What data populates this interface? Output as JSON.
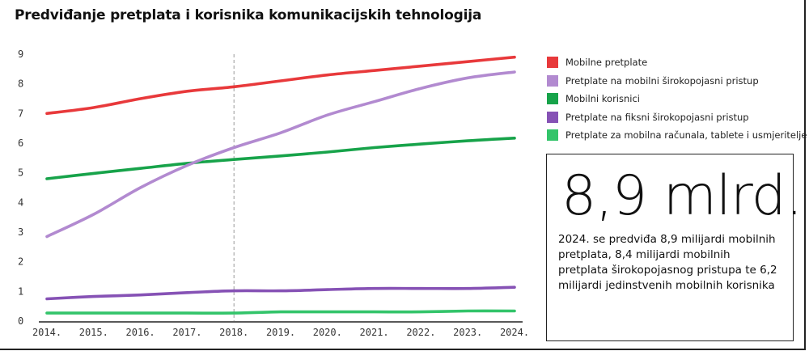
{
  "title": "Predviđanje pretplata i korisnika komunikacijskih tehnologija",
  "callout": {
    "big_number": "8,9 mlrd.",
    "text": "2024. se predviđa 8,9 milijardi mobilnih pretplata, 8,4 milijardi mobilnih pretplata širokopojasnog pristupa te 6,2 milijardi jedinstvenih mobilnih korisnika"
  },
  "chart_data": {
    "type": "line",
    "title": "Predviđanje pretplata i korisnika komunikacijskih tehnologija",
    "xlabel": "",
    "ylabel": "",
    "categories": [
      "2014.",
      "2015.",
      "2016.",
      "2017.",
      "2018.",
      "2019.",
      "2020.",
      "2021.",
      "2022.",
      "2023.",
      "2024."
    ],
    "ylim": [
      0,
      9
    ],
    "yticks": [
      "0",
      "1",
      "2",
      "3",
      "4",
      "5",
      "6",
      "7",
      "8",
      "9"
    ],
    "grid": false,
    "reference_line_at": "2018.",
    "legend_position": "right",
    "series": [
      {
        "name": "Mobilne pretplate",
        "color": "#e8393b",
        "values": [
          7.0,
          7.2,
          7.5,
          7.75,
          7.9,
          8.1,
          8.3,
          8.45,
          8.6,
          8.75,
          8.9
        ]
      },
      {
        "name": "Pretplate na mobilni širokopojasni pristup",
        "color": "#b28ad0",
        "values": [
          2.85,
          3.6,
          4.5,
          5.25,
          5.85,
          6.35,
          6.95,
          7.4,
          7.85,
          8.2,
          8.4
        ]
      },
      {
        "name": "Mobilni korisnici",
        "color": "#17a34a",
        "values": [
          4.8,
          4.98,
          5.15,
          5.32,
          5.45,
          5.57,
          5.7,
          5.85,
          5.97,
          6.08,
          6.17
        ]
      },
      {
        "name": "Pretplate na fiksni širokopojasni pristup",
        "color": "#8652b5",
        "values": [
          0.75,
          0.83,
          0.88,
          0.96,
          1.02,
          1.02,
          1.06,
          1.1,
          1.1,
          1.1,
          1.14
        ]
      },
      {
        "name": "Pretplate za mobilna računala, tablete i usmjeritelje",
        "color": "#33c46a",
        "values": [
          0.27,
          0.27,
          0.27,
          0.27,
          0.27,
          0.31,
          0.31,
          0.31,
          0.31,
          0.34,
          0.34
        ]
      }
    ]
  }
}
